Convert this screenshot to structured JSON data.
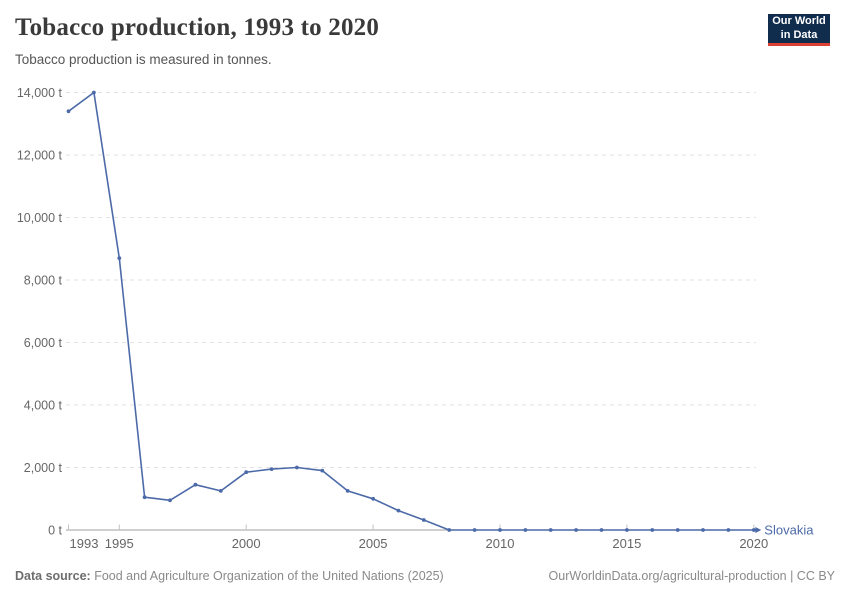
{
  "logo": {
    "line1": "Our World",
    "line2": "in Data"
  },
  "chart_data": {
    "type": "line",
    "title": "Tobacco production, 1993 to 2020",
    "subtitle": "Tobacco production is measured in tonnes.",
    "unit": "t",
    "x": [
      1993,
      1994,
      1995,
      1996,
      1997,
      1998,
      1999,
      2000,
      2001,
      2002,
      2003,
      2004,
      2005,
      2006,
      2007,
      2008,
      2009,
      2010,
      2011,
      2012,
      2013,
      2014,
      2015,
      2016,
      2017,
      2018,
      2019,
      2020
    ],
    "xticks": [
      1993,
      1995,
      2000,
      2005,
      2010,
      2015,
      2020
    ],
    "ylim": [
      0,
      14000
    ],
    "ytick_step": 2000,
    "grid": "horizontal-dashed",
    "legend_position": "end-of-line",
    "series": [
      {
        "name": "Slovakia",
        "color": "#4c6aa8",
        "values": [
          13400,
          14000,
          8700,
          1050,
          950,
          1450,
          1250,
          1850,
          1950,
          2000,
          1900,
          1250,
          1000,
          620,
          320,
          0,
          0,
          0,
          0,
          0,
          0,
          0,
          0,
          0,
          0,
          0,
          0,
          0
        ]
      }
    ]
  },
  "footer": {
    "source_label": "Data source:",
    "source_text": " Food and Agriculture Organization of the United Nations (2025)",
    "link_text": "OurWorldinData.org/agricultural-production | CC BY"
  },
  "colors": {
    "line": "#4c6aa8",
    "grid": "#e2e2e2",
    "axis": "#a1a1a1",
    "x_tick": "#c2c2c2",
    "tick_label": "#666666",
    "logo_bg": "#102d4e",
    "logo_red": "#dc3f34"
  }
}
